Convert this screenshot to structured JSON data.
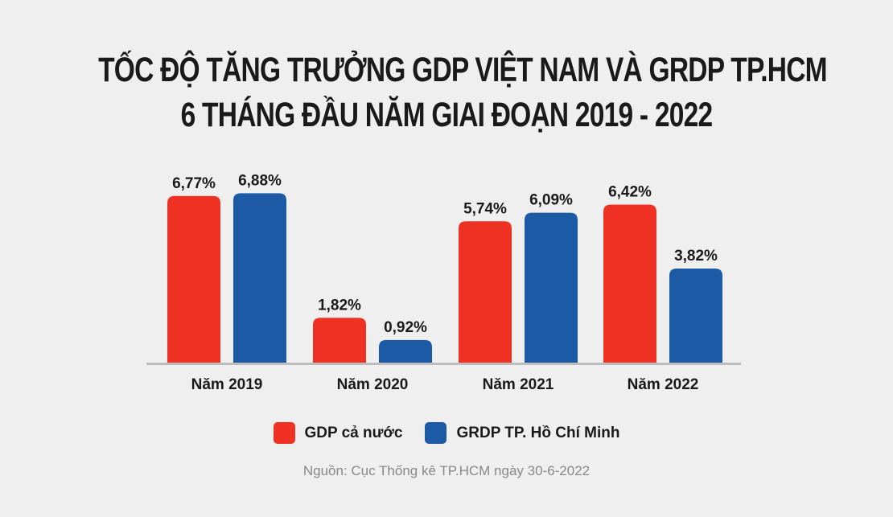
{
  "title_lines": [
    "TỐC ĐỘ TĂNG TRƯỞNG GDP VIỆT NAM VÀ GRDP TP.HCM",
    "6 THÁNG ĐẦU NĂM GIAI ĐOẠN 2019 - 2022"
  ],
  "source": "Nguồn: Cục Thống kê TP.HCM ngày 30-6-2022",
  "chart_data": {
    "type": "bar",
    "title": "TỐC ĐỘ TĂNG TRƯỞNG GDP VIỆT NAM VÀ GRDP TP.HCM 6 THÁNG ĐẦU NĂM GIAI ĐOẠN 2019 - 2022",
    "categories": [
      "Năm 2019",
      "Năm 2020",
      "Năm 2021",
      "Năm 2022"
    ],
    "series": [
      {
        "name": "GDP cả nước",
        "color": "#ef3124",
        "values": [
          6.77,
          1.82,
          5.74,
          6.42
        ],
        "labels": [
          "6,77%",
          "1,82%",
          "5,74%",
          "6,42%"
        ]
      },
      {
        "name": "GRDP TP. Hồ Chí Minh",
        "color": "#1d5aa6",
        "values": [
          6.88,
          0.92,
          6.09,
          3.82
        ],
        "labels": [
          "6,88%",
          "0,92%",
          "6,09%",
          "3,82%"
        ]
      }
    ],
    "xlabel": "",
    "ylabel": "",
    "ylim": [
      0,
      7.35
    ],
    "grid": false,
    "legend": "bottom-center"
  }
}
